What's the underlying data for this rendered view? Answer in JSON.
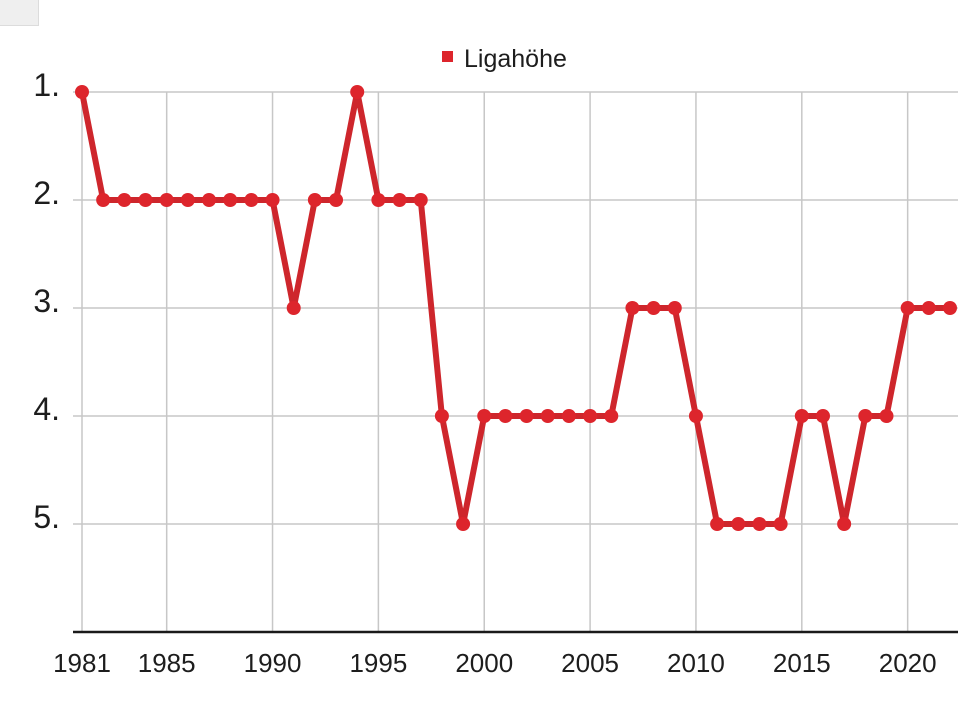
{
  "legend": {
    "label": "Ligahöhe",
    "position": "top-center"
  },
  "chart_data": {
    "type": "line",
    "title": "",
    "xlabel": "",
    "ylabel": "",
    "series": [
      {
        "name": "Ligahöhe",
        "x": [
          1981,
          1982,
          1983,
          1984,
          1985,
          1986,
          1987,
          1988,
          1989,
          1990,
          1991,
          1992,
          1993,
          1994,
          1995,
          1996,
          1997,
          1998,
          1999,
          2000,
          2001,
          2002,
          2003,
          2004,
          2005,
          2006,
          2007,
          2008,
          2009,
          2010,
          2011,
          2012,
          2013,
          2014,
          2015,
          2016,
          2017,
          2018,
          2019,
          2020,
          2021,
          2022
        ],
        "values": [
          1,
          2,
          2,
          2,
          2,
          2,
          2,
          2,
          2,
          2,
          3,
          2,
          2,
          1,
          2,
          2,
          2,
          4,
          5,
          4,
          4,
          4,
          4,
          4,
          4,
          4,
          3,
          3,
          3,
          4,
          5,
          5,
          5,
          5,
          4,
          4,
          5,
          4,
          4,
          3,
          3,
          3
        ]
      }
    ],
    "x_tick_labels": [
      "1981",
      "1985",
      "1990",
      "1995",
      "2000",
      "2005",
      "2010",
      "2015",
      "2020"
    ],
    "y_tick_labels": [
      "1.",
      "2.",
      "3.",
      "4.",
      "5."
    ],
    "x_axis": {
      "min": 1981,
      "max": 2022,
      "grid": true
    },
    "y_axis": {
      "min": 1,
      "max": 6,
      "inverted": true,
      "grid": true,
      "note": "rank scale, 1 (top league) at top"
    },
    "legend_position": "top-center",
    "colors": {
      "line": "#ce262c",
      "marker": "#dd252c",
      "grid": "#c7c7c7",
      "axis": "#1a1a1a",
      "text": "#1d1d1d",
      "background": "#ffffff"
    },
    "marker": {
      "shape": "circle",
      "radius": 7
    },
    "line_width": 6
  }
}
